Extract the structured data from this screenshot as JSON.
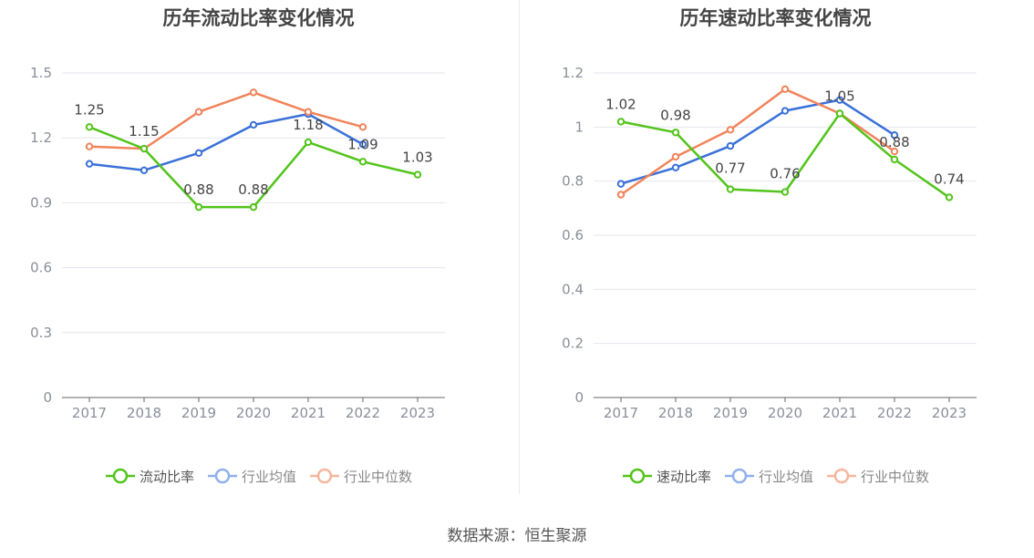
{
  "source": {
    "text": "数据来源：恒生聚源"
  },
  "chart_data": [
    {
      "type": "line",
      "title": "历年流动比率变化情况",
      "categories": [
        "2017",
        "2018",
        "2019",
        "2020",
        "2021",
        "2022",
        "2023"
      ],
      "ylim": [
        0,
        1.5
      ],
      "yticks": [
        "0",
        "0.3",
        "0.6",
        "0.9",
        "1.2",
        "1.5"
      ],
      "grid": true,
      "legend_position": "bottom",
      "series": [
        {
          "name": "流动比率",
          "color": "#52c41a",
          "values": [
            1.25,
            1.15,
            0.88,
            0.88,
            1.18,
            1.09,
            1.03
          ],
          "labeled": true
        },
        {
          "name": "行业均值",
          "color": "#3a70d8",
          "values": [
            1.08,
            1.05,
            1.13,
            1.26,
            1.31,
            1.17,
            null
          ],
          "labeled": false
        },
        {
          "name": "行业中位数",
          "color": "#f0845a",
          "values": [
            1.16,
            1.15,
            1.32,
            1.41,
            1.32,
            1.25,
            null
          ],
          "labeled": false
        }
      ]
    },
    {
      "type": "line",
      "title": "历年速动比率变化情况",
      "categories": [
        "2017",
        "2018",
        "2019",
        "2020",
        "2021",
        "2022",
        "2023"
      ],
      "ylim": [
        0,
        1.2
      ],
      "yticks": [
        "0",
        "0.2",
        "0.4",
        "0.6",
        "0.8",
        "1",
        "1.2"
      ],
      "grid": true,
      "legend_position": "bottom",
      "series": [
        {
          "name": "速动比率",
          "color": "#52c41a",
          "values": [
            1.02,
            0.98,
            0.77,
            0.76,
            1.05,
            0.88,
            0.74
          ],
          "labeled": true
        },
        {
          "name": "行业均值",
          "color": "#3a70d8",
          "values": [
            0.79,
            0.85,
            0.93,
            1.06,
            1.1,
            0.97,
            null
          ],
          "labeled": false
        },
        {
          "name": "行业中位数",
          "color": "#f0845a",
          "values": [
            0.75,
            0.89,
            0.99,
            1.14,
            1.05,
            0.91,
            null
          ],
          "labeled": false
        }
      ]
    }
  ]
}
